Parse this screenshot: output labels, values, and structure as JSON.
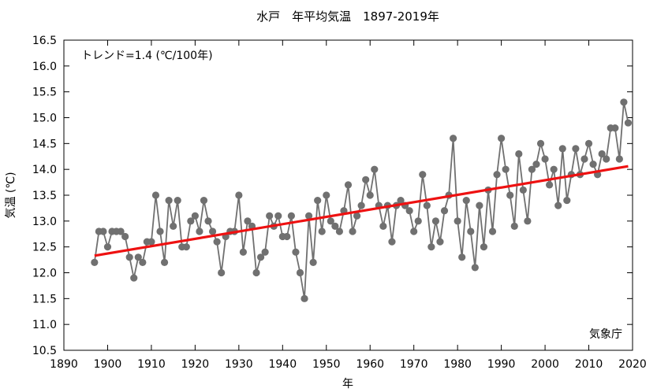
{
  "chart_data": {
    "type": "line",
    "title": "水戸　年平均気温　1897-2019年",
    "xlabel": "年",
    "ylabel": "気温 (℃)",
    "xlim": [
      1890,
      2020
    ],
    "ylim": [
      10.5,
      16.5
    ],
    "x_ticks": [
      1890,
      1900,
      1910,
      1920,
      1930,
      1940,
      1950,
      1960,
      1970,
      1980,
      1990,
      2000,
      2010,
      2020
    ],
    "y_ticks": [
      10.5,
      11.0,
      11.5,
      12.0,
      12.5,
      13.0,
      13.5,
      14.0,
      14.5,
      15.0,
      15.5,
      16.0,
      16.5
    ],
    "y_tick_labels": [
      "10.5",
      "11.0",
      "11.5",
      "12.0",
      "12.5",
      "13.0",
      "13.5",
      "14.0",
      "14.5",
      "15.0",
      "15.5",
      "16.0",
      "16.5"
    ],
    "grid": false,
    "trend_label": "トレンド=1.4 (℃/100年)",
    "source_label": "気象庁",
    "colors": {
      "series": "#707070",
      "trend": "#ee1111",
      "axis": "#000000"
    },
    "series": [
      {
        "x": [
          1897,
          1898,
          1899,
          1900,
          1901,
          1902,
          1903,
          1904,
          1905,
          1906,
          1907,
          1908,
          1909,
          1910,
          1911,
          1912,
          1913,
          1914,
          1915,
          1916,
          1917,
          1918,
          1919,
          1920,
          1921,
          1922,
          1923,
          1924,
          1925,
          1926,
          1927,
          1928,
          1929,
          1930,
          1931,
          1932,
          1933,
          1934,
          1935,
          1936,
          1937,
          1938,
          1939,
          1940,
          1941,
          1942,
          1943,
          1944,
          1945,
          1946,
          1947,
          1948,
          1949,
          1950,
          1951,
          1952,
          1953,
          1954,
          1955,
          1956,
          1957,
          1958,
          1959,
          1960,
          1961,
          1962,
          1963,
          1964,
          1965,
          1966,
          1967,
          1968,
          1969,
          1970,
          1971,
          1972,
          1973,
          1974,
          1975,
          1976,
          1977,
          1978,
          1979,
          1980,
          1981,
          1982,
          1983,
          1984,
          1985,
          1986,
          1987,
          1988,
          1989,
          1990,
          1991,
          1992,
          1993,
          1994,
          1995,
          1996,
          1997,
          1998,
          1999,
          2000,
          2001,
          2002,
          2003,
          2004,
          2005,
          2006,
          2007,
          2008,
          2009,
          2010,
          2011,
          2012,
          2013,
          2014,
          2015,
          2016,
          2017,
          2018,
          2019
        ],
        "values": [
          12.2,
          12.8,
          12.8,
          12.5,
          12.8,
          12.8,
          12.8,
          12.7,
          12.3,
          11.9,
          12.3,
          12.2,
          12.6,
          12.6,
          13.5,
          12.8,
          12.2,
          13.4,
          12.9,
          13.4,
          12.5,
          12.5,
          13.0,
          13.1,
          12.8,
          13.4,
          13.0,
          12.8,
          12.6,
          12.0,
          12.7,
          12.8,
          12.8,
          13.5,
          12.4,
          13.0,
          12.9,
          12.0,
          12.3,
          12.4,
          13.1,
          12.9,
          13.1,
          12.7,
          12.7,
          13.1,
          12.4,
          12.0,
          11.5,
          13.1,
          12.2,
          13.4,
          12.8,
          13.5,
          13.0,
          12.9,
          12.8,
          13.2,
          13.7,
          12.8,
          13.1,
          13.3,
          13.8,
          13.5,
          14.0,
          13.3,
          12.9,
          13.3,
          12.6,
          13.3,
          13.4,
          13.3,
          13.2,
          12.8,
          13.0,
          13.9,
          13.3,
          12.5,
          13.0,
          12.6,
          13.2,
          13.5,
          14.6,
          13.0,
          12.3,
          13.4,
          12.8,
          12.1,
          13.3,
          12.5,
          13.6,
          12.8,
          13.9,
          14.6,
          14.0,
          13.5,
          12.9,
          14.3,
          13.6,
          13.0,
          14.0,
          14.1,
          14.5,
          14.2,
          13.7,
          14.0,
          13.3,
          14.4,
          13.4,
          13.9,
          14.4,
          13.9,
          14.2,
          14.5,
          14.1,
          13.9,
          14.3,
          14.2,
          14.8,
          14.8,
          14.2,
          15.3,
          14.9
        ]
      }
    ],
    "trend": {
      "x": [
        1897,
        2019
      ],
      "values": [
        12.33,
        14.06
      ]
    }
  }
}
